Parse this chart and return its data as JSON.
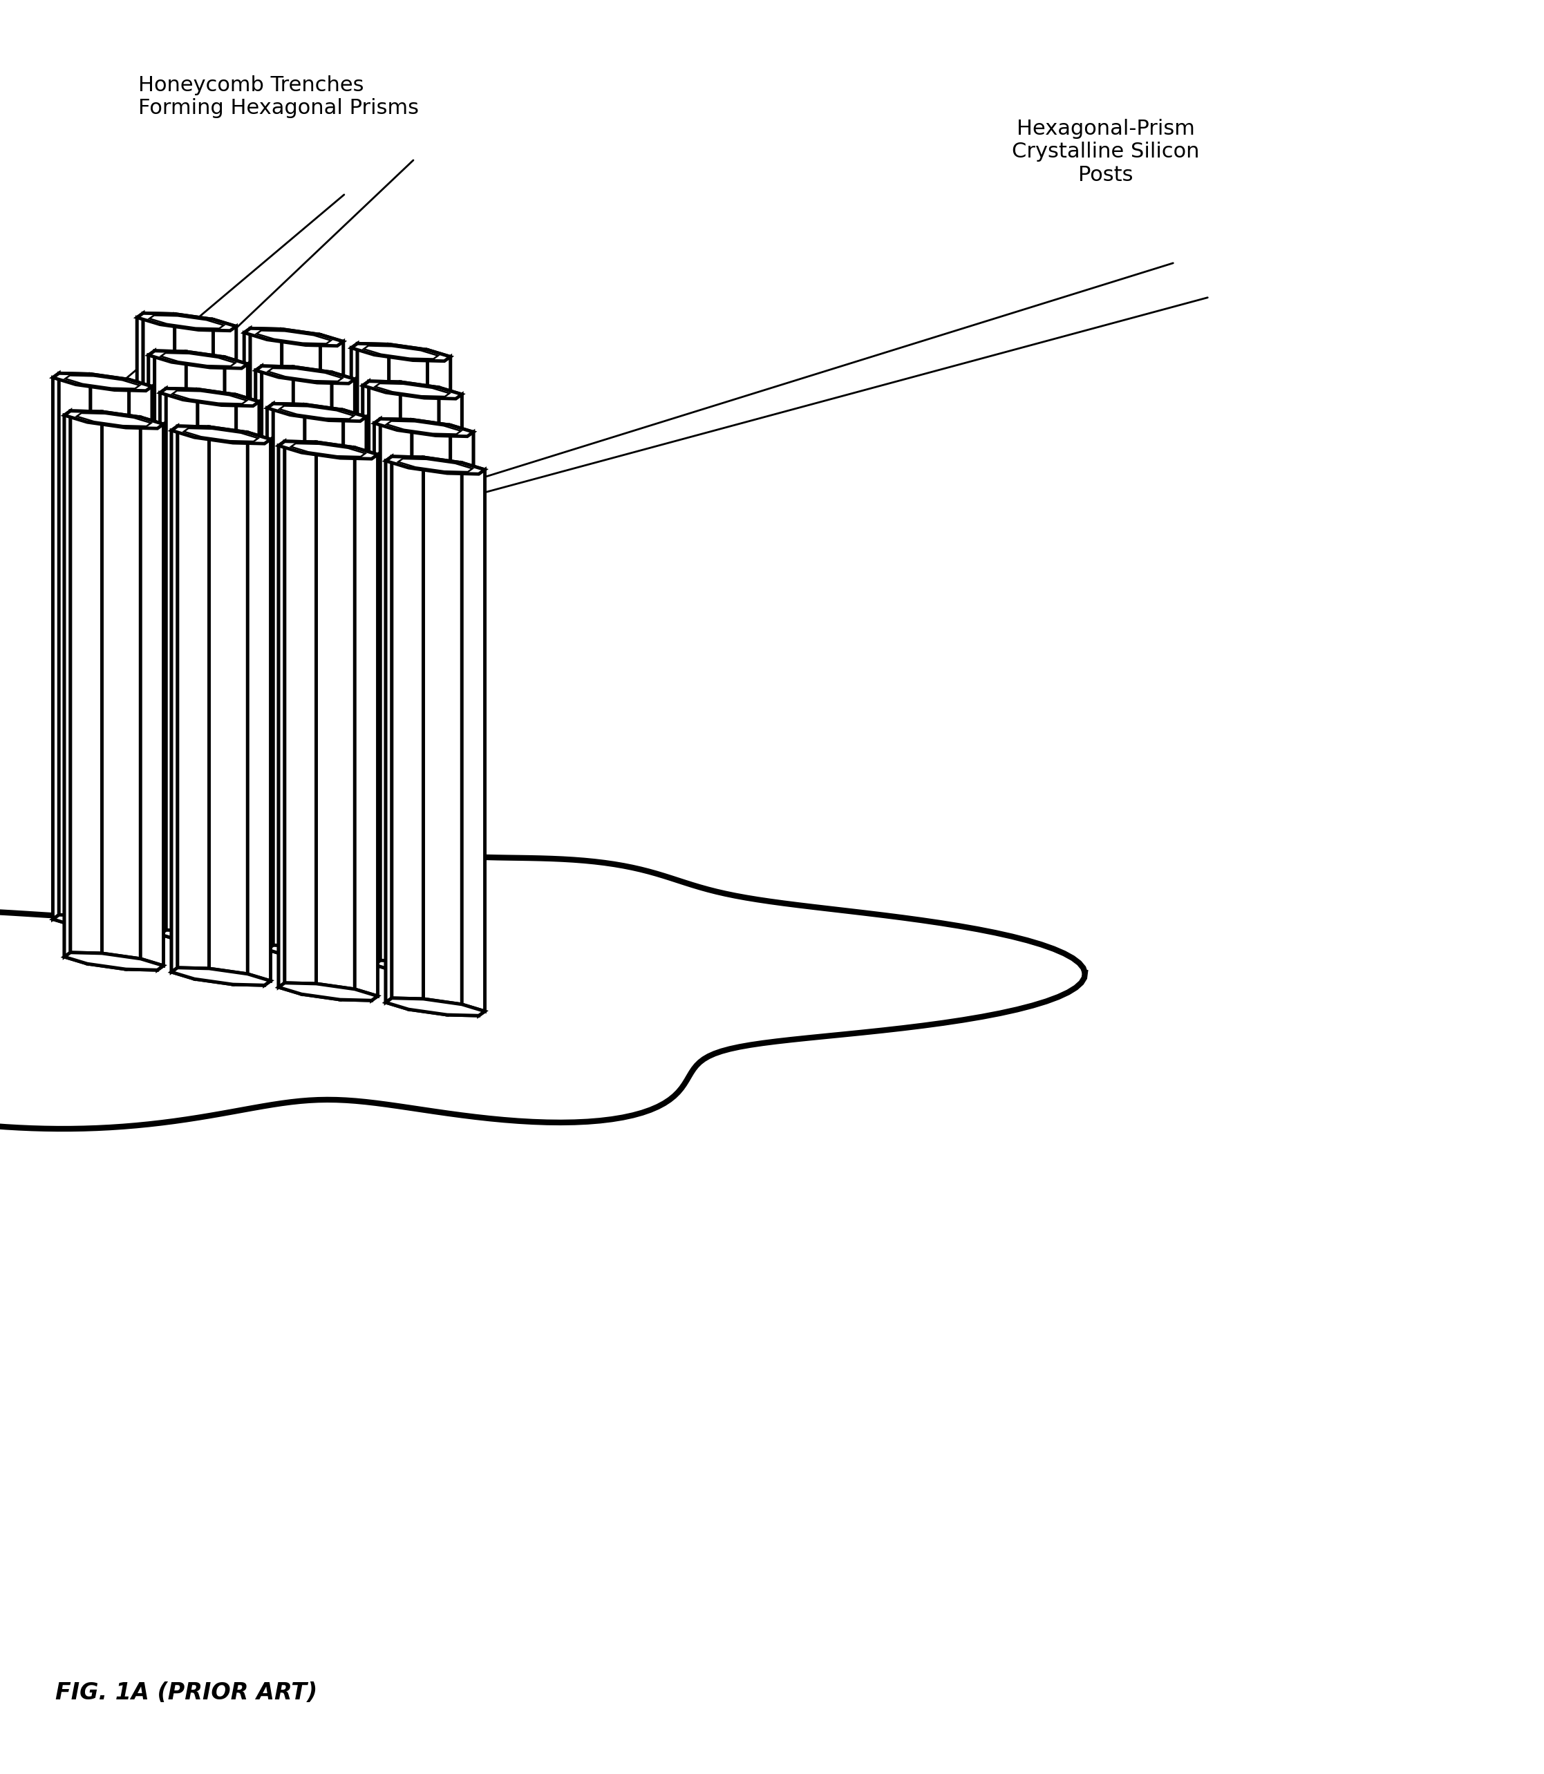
{
  "fig_width": 22.34,
  "fig_height": 25.68,
  "background_color": "#ffffff",
  "line_color": "#000000",
  "fill_color": "#ffffff",
  "label_top_left": "Honeycomb Trenches\nForming Hexagonal Prisms",
  "label_bottom_left": "Honeycomb Trenches\nForming Hexagonal Prisms",
  "label_top_right": "Hexagonal-Prism\nCrystalline Silicon\nPosts",
  "figure_label": "FIG. 1A (PRIOR ART)",
  "lw_outer": 3.5,
  "lw_inner": 1.8,
  "annotation_fontsize": 22,
  "label_fontsize": 24
}
